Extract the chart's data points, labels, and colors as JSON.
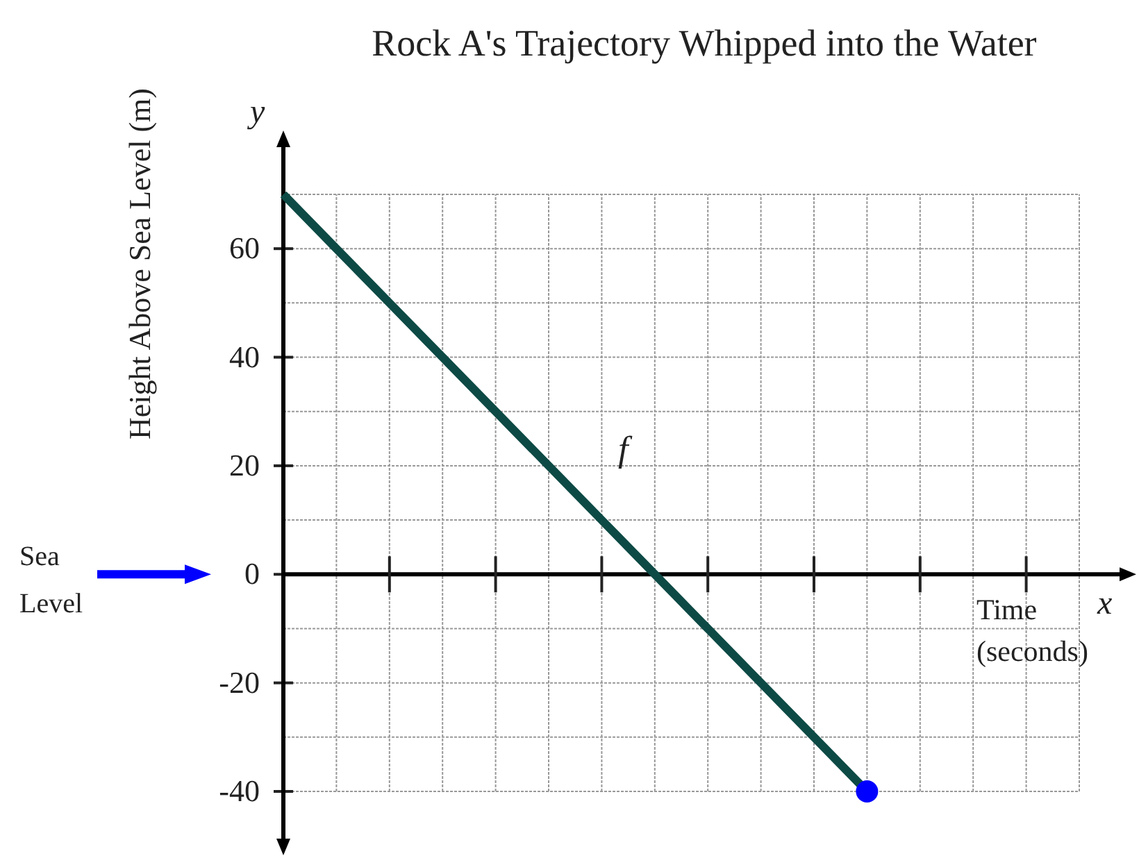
{
  "chart_data": {
    "type": "line",
    "title": "Rock A's Trajectory Whipped into the Water",
    "xlabel": "Time (seconds)",
    "ylabel": "Height Above Sea Level (m)",
    "categories": [
      null,
      null,
      null,
      null,
      null,
      null,
      null,
      null,
      null,
      null,
      null,
      null
    ],
    "series": [
      {
        "color": "#0d4a45",
        "values": [
          70,
          60,
          50,
          40,
          30,
          20,
          10,
          0,
          -10,
          -20,
          -30,
          -40
        ]
      },
      {
        "type": "scatter",
        "color": "#0000ff",
        "values": [
          null,
          null,
          null,
          null,
          null,
          null,
          null,
          null,
          null,
          null,
          null,
          -40
        ]
      }
    ],
    "ylim": [
      -40,
      70
    ],
    "yticks": [
      -40,
      -20,
      0,
      20,
      40,
      60
    ],
    "grid": true,
    "tick_labels": "y",
    "annotations": [
      "x",
      "y",
      "f",
      "Sea Level"
    ]
  }
}
